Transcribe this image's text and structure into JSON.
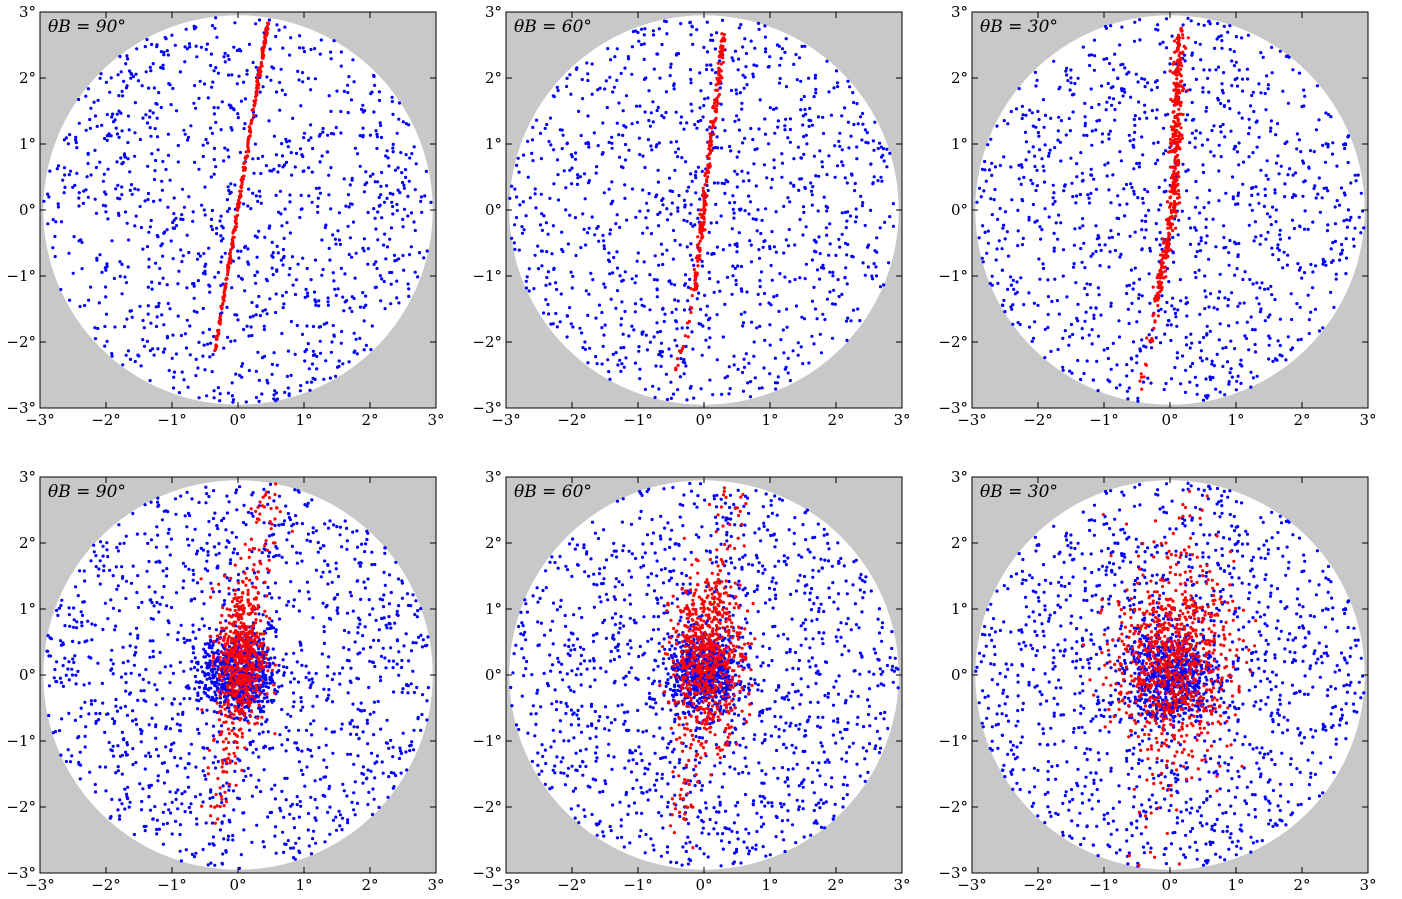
{
  "figure": {
    "background_color": "#c8c8c8",
    "disk_color": "#ffffff",
    "background_series_color": "#0000ff",
    "signal_series_color": "#ff0000"
  },
  "chart_data": [
    {
      "type": "scatter",
      "row": 1,
      "col": 1,
      "annotation": "θB = 90°",
      "theta_B": 90,
      "xlim": [
        -3,
        3
      ],
      "ylim": [
        -3,
        3
      ],
      "xticks": [
        "−3°",
        "−2°",
        "−1°",
        "0°",
        "1°",
        "2°",
        "3°"
      ],
      "yticks": [
        "−3°",
        "−2°",
        "−1°",
        "0°",
        "1°",
        "2°",
        "3°"
      ],
      "grid": false,
      "field_radius_deg": 2.95,
      "series": [
        {
          "role": "background",
          "color": "#0000ff",
          "distribution": "uniform-disk",
          "n": 1100
        },
        {
          "role": "signal",
          "color": "#ff0000",
          "distribution": "line",
          "start": [
            -0.35,
            -2.15
          ],
          "end": [
            0.45,
            2.85
          ],
          "n": 260,
          "scatter": 0.01
        }
      ]
    },
    {
      "type": "scatter",
      "row": 1,
      "col": 2,
      "annotation": "θB = 60°",
      "theta_B": 60,
      "xlim": [
        -3,
        3
      ],
      "ylim": [
        -3,
        3
      ],
      "xticks": [
        "−3°",
        "−2°",
        "−1°",
        "0°",
        "1°",
        "2°",
        "3°"
      ],
      "yticks": [
        "−3°",
        "−2°",
        "−1°",
        "0°",
        "1°",
        "2°",
        "3°"
      ],
      "grid": false,
      "field_radius_deg": 2.95,
      "series": [
        {
          "role": "background",
          "color": "#0000ff",
          "distribution": "uniform-disk",
          "n": 1100
        },
        {
          "role": "signal",
          "color": "#ff0000",
          "distribution": "line",
          "start": [
            -0.15,
            -1.25
          ],
          "end": [
            0.3,
            2.7
          ],
          "n": 220,
          "scatter": 0.02
        },
        {
          "role": "signal-tail",
          "color": "#ff0000",
          "distribution": "line",
          "start": [
            -0.45,
            -2.6
          ],
          "end": [
            -0.15,
            -1.25
          ],
          "n": 18,
          "scatter": 0.02
        }
      ]
    },
    {
      "type": "scatter",
      "row": 1,
      "col": 3,
      "annotation": "θB = 30°",
      "theta_B": 30,
      "xlim": [
        -3,
        3
      ],
      "ylim": [
        -3,
        3
      ],
      "xticks": [
        "−3°",
        "−2°",
        "−1°",
        "0°",
        "1°",
        "2°",
        "3°"
      ],
      "yticks": [
        "−3°",
        "−2°",
        "−1°",
        "0°",
        "1°",
        "2°",
        "3°"
      ],
      "grid": false,
      "field_radius_deg": 2.95,
      "series": [
        {
          "role": "background",
          "color": "#0000ff",
          "distribution": "uniform-disk",
          "n": 1100
        },
        {
          "role": "signal",
          "color": "#ff0000",
          "distribution": "line",
          "start": [
            0.05,
            0.0
          ],
          "end": [
            0.15,
            2.75
          ],
          "n": 260,
          "scatter": 0.04
        },
        {
          "role": "signal-lower",
          "color": "#ff0000",
          "distribution": "line",
          "start": [
            -0.2,
            -1.35
          ],
          "end": [
            0.05,
            0.0
          ],
          "n": 120,
          "scatter": 0.03
        },
        {
          "role": "signal-tail",
          "color": "#ff0000",
          "distribution": "line",
          "start": [
            -0.45,
            -2.8
          ],
          "end": [
            -0.2,
            -1.35
          ],
          "n": 20,
          "scatter": 0.03
        }
      ]
    },
    {
      "type": "scatter",
      "row": 2,
      "col": 1,
      "annotation": "θB = 90°",
      "theta_B": 90,
      "xlim": [
        -3,
        3
      ],
      "ylim": [
        -3,
        3
      ],
      "xticks": [
        "−3°",
        "−2°",
        "−1°",
        "0°",
        "1°",
        "2°",
        "3°"
      ],
      "yticks": [
        "−3°",
        "−2°",
        "−1°",
        "0°",
        "1°",
        "2°",
        "3°"
      ],
      "grid": false,
      "field_radius_deg": 2.95,
      "series": [
        {
          "role": "background",
          "color": "#0000ff",
          "distribution": "uniform-disk",
          "n": 1300
        },
        {
          "role": "background-core",
          "color": "#0000ff",
          "distribution": "gaussian",
          "center": [
            0.0,
            0.0
          ],
          "sigma": [
            0.28,
            0.3
          ],
          "n": 650
        },
        {
          "role": "signal-core",
          "color": "#ff0000",
          "distribution": "gaussian",
          "center": [
            0.05,
            0.3
          ],
          "sigma": [
            0.18,
            0.55
          ],
          "n": 500
        },
        {
          "role": "signal-streak",
          "color": "#ff0000",
          "distribution": "line",
          "start": [
            -0.35,
            -2.2
          ],
          "end": [
            0.5,
            2.9
          ],
          "n": 160,
          "scatter": 0.12
        }
      ]
    },
    {
      "type": "scatter",
      "row": 2,
      "col": 2,
      "annotation": "θB = 60°",
      "theta_B": 60,
      "xlim": [
        -3,
        3
      ],
      "ylim": [
        -3,
        3
      ],
      "xticks": [
        "−3°",
        "−2°",
        "−1°",
        "0°",
        "1°",
        "2°",
        "3°"
      ],
      "yticks": [
        "−3°",
        "−2°",
        "−1°",
        "0°",
        "1°",
        "2°",
        "3°"
      ],
      "grid": false,
      "field_radius_deg": 2.95,
      "series": [
        {
          "role": "background",
          "color": "#0000ff",
          "distribution": "uniform-disk",
          "n": 1300
        },
        {
          "role": "background-core",
          "color": "#0000ff",
          "distribution": "gaussian",
          "center": [
            0.0,
            0.0
          ],
          "sigma": [
            0.3,
            0.3
          ],
          "n": 650
        },
        {
          "role": "signal-core",
          "color": "#ff0000",
          "distribution": "gaussian",
          "center": [
            0.05,
            0.25
          ],
          "sigma": [
            0.28,
            0.6
          ],
          "n": 600
        },
        {
          "role": "signal-streak",
          "color": "#ff0000",
          "distribution": "line",
          "start": [
            -0.4,
            -2.6
          ],
          "end": [
            0.4,
            2.9
          ],
          "n": 140,
          "scatter": 0.15
        }
      ]
    },
    {
      "type": "scatter",
      "row": 2,
      "col": 3,
      "annotation": "θB = 30°",
      "theta_B": 30,
      "xlim": [
        -3,
        3
      ],
      "ylim": [
        -3,
        3
      ],
      "xticks": [
        "−3°",
        "−2°",
        "−1°",
        "0°",
        "1°",
        "2°",
        "3°"
      ],
      "yticks": [
        "−3°",
        "−2°",
        "−1°",
        "0°",
        "1°",
        "2°",
        "3°"
      ],
      "grid": false,
      "field_radius_deg": 2.95,
      "series": [
        {
          "role": "background",
          "color": "#0000ff",
          "distribution": "uniform-disk",
          "n": 1300
        },
        {
          "role": "background-core",
          "color": "#0000ff",
          "distribution": "gaussian",
          "center": [
            0.0,
            0.0
          ],
          "sigma": [
            0.35,
            0.35
          ],
          "n": 650
        },
        {
          "role": "signal-core",
          "color": "#ff0000",
          "distribution": "gaussian",
          "center": [
            0.05,
            0.2
          ],
          "sigma": [
            0.45,
            0.7
          ],
          "n": 800
        },
        {
          "role": "signal-streak",
          "color": "#ff0000",
          "distribution": "line",
          "start": [
            -0.3,
            -2.9
          ],
          "end": [
            0.3,
            2.9
          ],
          "n": 80,
          "scatter": 0.2
        }
      ]
    }
  ]
}
